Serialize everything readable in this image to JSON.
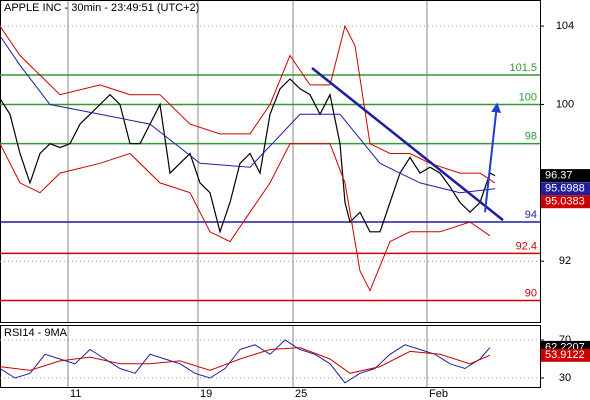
{
  "chart_data": [
    {
      "type": "line",
      "title": "APPLE INC - 30min - 23:49:51 (UTC+2)",
      "xlim": [
        0,
        540
      ],
      "xticks": [
        {
          "value": 68,
          "label": "11"
        },
        {
          "value": 198,
          "label": "19"
        },
        {
          "value": 293,
          "label": "25"
        },
        {
          "value": 427,
          "label": "Feb"
        }
      ],
      "ylim": [
        88.9,
        105.33
      ],
      "yticks": [
        92,
        100,
        104
      ],
      "grid": true,
      "series": [
        {
          "color": "#000000",
          "width": 1.2,
          "x": [
            0,
            10,
            20,
            30,
            40,
            50,
            60,
            70,
            80,
            90,
            100,
            110,
            120,
            130,
            140,
            150,
            160,
            170,
            180,
            190,
            200,
            210,
            220,
            230,
            240,
            250,
            260,
            270,
            280,
            290,
            300,
            310,
            320,
            330,
            340,
            345,
            350,
            360,
            370,
            380,
            390,
            400,
            410,
            420,
            430,
            440,
            450,
            460,
            470,
            480,
            490,
            495
          ],
          "values": [
            100.3,
            99.5,
            97.5,
            96,
            97.5,
            98,
            97.8,
            98,
            99,
            99.5,
            100,
            100.5,
            100,
            98,
            98,
            99,
            100,
            96.5,
            97,
            97.5,
            96,
            95.5,
            93.5,
            95,
            97,
            97.5,
            96.5,
            99.5,
            100.8,
            101.3,
            100.8,
            100.5,
            99.5,
            100.5,
            98,
            95,
            94,
            94.5,
            93.5,
            93.5,
            95,
            96.5,
            97.3,
            96.5,
            96.8,
            96.5,
            95.8,
            95,
            94.5,
            95,
            96.5,
            96.37
          ]
        },
        {
          "color": "#1f1f9e",
          "width": 1,
          "x": [
            0,
            20,
            50,
            100,
            150,
            200,
            250,
            300,
            340,
            380,
            420,
            460,
            495
          ],
          "values": [
            103.5,
            102,
            100,
            99.5,
            99,
            97,
            96.8,
            99.5,
            99.5,
            97,
            96,
            95.5,
            95.7
          ]
        },
        {
          "color": "#cc0000",
          "width": 1,
          "x": [
            0,
            20,
            40,
            60,
            100,
            130,
            160,
            190,
            220,
            250,
            270,
            290,
            310,
            330,
            345,
            355,
            370,
            390,
            410,
            430,
            460,
            480,
            495
          ],
          "values": [
            104,
            102.5,
            101.5,
            100.5,
            101,
            100.5,
            100.5,
            99,
            98.5,
            98.5,
            100,
            102.5,
            101,
            101,
            104,
            103,
            98,
            97.5,
            97.5,
            97,
            96.5,
            96.5,
            96
          ]
        },
        {
          "color": "#cc0000",
          "width": 1,
          "x": [
            0,
            20,
            40,
            60,
            100,
            130,
            160,
            190,
            210,
            230,
            250,
            270,
            290,
            310,
            330,
            345,
            360,
            370,
            390,
            410,
            440,
            470,
            490
          ],
          "values": [
            98,
            96,
            95.5,
            96.5,
            97,
            97.5,
            96,
            95.5,
            93.5,
            93,
            94.5,
            96,
            98,
            98,
            98,
            96,
            91.5,
            90.5,
            93,
            93.5,
            93.5,
            94,
            93.3
          ]
        }
      ],
      "levels": [
        {
          "value": 101.5,
          "color": "#339933"
        },
        {
          "value": 100,
          "color": "#339933"
        },
        {
          "value": 98,
          "color": "#339933"
        },
        {
          "value": 94,
          "color": "#1f1f9e"
        },
        {
          "value": 92.4,
          "color": "#cc0000"
        },
        {
          "value": 90,
          "color": "#cc0000"
        }
      ],
      "trendline": {
        "color": "#1f1f9e",
        "x": [
          312,
          503
        ],
        "values": [
          101.86,
          94.1
        ]
      },
      "arrow": {
        "color": "#1f3fd0",
        "x": [
          485,
          497
        ],
        "values": [
          94.5,
          100
        ]
      },
      "markers": [
        {
          "value": 96.37,
          "color": "#000000"
        },
        {
          "value": 95.6988,
          "color": "#1f1f9e"
        },
        {
          "value": 95.0383,
          "color": "#cc0000"
        }
      ]
    },
    {
      "type": "line",
      "title": "RSI14 - 9MA",
      "xlim": [
        0,
        540
      ],
      "ylim": [
        17.4,
        85.8
      ],
      "yticks": [
        30,
        70
      ],
      "grid": true,
      "series": [
        {
          "color": "#1f1f9e",
          "width": 1,
          "x": [
            0,
            15,
            30,
            45,
            60,
            75,
            90,
            105,
            120,
            135,
            150,
            165,
            180,
            195,
            210,
            225,
            240,
            255,
            270,
            285,
            300,
            315,
            330,
            345,
            360,
            375,
            390,
            405,
            420,
            435,
            450,
            465,
            480,
            490
          ],
          "values": [
            40,
            30,
            35,
            55,
            50,
            45,
            60,
            50,
            40,
            35,
            55,
            50,
            45,
            35,
            30,
            40,
            60,
            65,
            55,
            70,
            60,
            55,
            45,
            25,
            35,
            40,
            55,
            65,
            60,
            55,
            45,
            40,
            50,
            62
          ]
        },
        {
          "color": "#cc0000",
          "width": 1,
          "x": [
            0,
            30,
            60,
            90,
            120,
            150,
            180,
            210,
            240,
            270,
            300,
            330,
            350,
            380,
            410,
            440,
            470,
            490
          ],
          "values": [
            42,
            38,
            48,
            52,
            45,
            45,
            48,
            38,
            50,
            60,
            62,
            50,
            35,
            42,
            58,
            55,
            45,
            54
          ]
        }
      ],
      "markers": [
        {
          "value": 62.2207,
          "color": "#000000"
        },
        {
          "value": 53.9122,
          "color": "#cc0000"
        }
      ]
    }
  ]
}
